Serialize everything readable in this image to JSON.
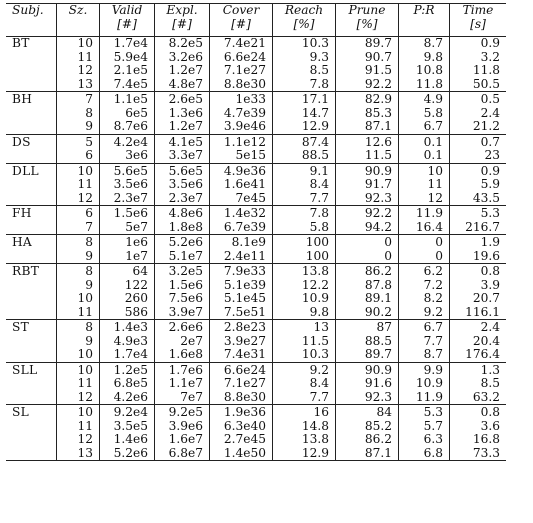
{
  "headers": [
    {
      "title": "Subj.",
      "unit": ""
    },
    {
      "title": "Sz.",
      "unit": ""
    },
    {
      "title": "Valid",
      "unit": "[#]"
    },
    {
      "title": "Expl.",
      "unit": "[#]"
    },
    {
      "title": "Cover",
      "unit": "[#]"
    },
    {
      "title": "Reach",
      "unit": "[%]"
    },
    {
      "title": "Prune",
      "unit": "[%]"
    },
    {
      "title": "P:R",
      "unit": ""
    },
    {
      "title": "Time",
      "unit": "[s]"
    }
  ],
  "groups": [
    {
      "subject": "BT",
      "rows": [
        [
          "10",
          "1.7e4",
          "8.2e5",
          "7.4e21",
          "10.3",
          "89.7",
          "8.7",
          "0.9"
        ],
        [
          "11",
          "5.9e4",
          "3.2e6",
          "6.6e24",
          "9.3",
          "90.7",
          "9.8",
          "3.2"
        ],
        [
          "12",
          "2.1e5",
          "1.2e7",
          "7.1e27",
          "8.5",
          "91.5",
          "10.8",
          "11.8"
        ],
        [
          "13",
          "7.4e5",
          "4.8e7",
          "8.8e30",
          "7.8",
          "92.2",
          "11.8",
          "50.5"
        ]
      ]
    },
    {
      "subject": "BH",
      "rows": [
        [
          "7",
          "1.1e5",
          "2.6e5",
          "1e33",
          "17.1",
          "82.9",
          "4.9",
          "0.5"
        ],
        [
          "8",
          "6e5",
          "1.3e6",
          "4.7e39",
          "14.7",
          "85.3",
          "5.8",
          "2.4"
        ],
        [
          "9",
          "8.7e6",
          "1.2e7",
          "3.9e46",
          "12.9",
          "87.1",
          "6.7",
          "21.2"
        ]
      ]
    },
    {
      "subject": "DS",
      "rows": [
        [
          "5",
          "4.2e4",
          "4.1e5",
          "1.1e12",
          "87.4",
          "12.6",
          "0.1",
          "0.7"
        ],
        [
          "6",
          "3e6",
          "3.3e7",
          "5e15",
          "88.5",
          "11.5",
          "0.1",
          "23"
        ]
      ]
    },
    {
      "subject": "DLL",
      "rows": [
        [
          "10",
          "5.6e5",
          "5.6e5",
          "4.9e36",
          "9.1",
          "90.9",
          "10",
          "0.9"
        ],
        [
          "11",
          "3.5e6",
          "3.5e6",
          "1.6e41",
          "8.4",
          "91.7",
          "11",
          "5.9"
        ],
        [
          "12",
          "2.3e7",
          "2.3e7",
          "7e45",
          "7.7",
          "92.3",
          "12",
          "43.5"
        ]
      ]
    },
    {
      "subject": "FH",
      "rows": [
        [
          "6",
          "1.5e6",
          "4.8e6",
          "1.4e32",
          "7.8",
          "92.2",
          "11.9",
          "5.3"
        ],
        [
          "7",
          "5e7",
          "1.8e8",
          "6.7e39",
          "5.8",
          "94.2",
          "16.4",
          "216.7"
        ]
      ]
    },
    {
      "subject": "HA",
      "rows": [
        [
          "8",
          "1e6",
          "5.2e6",
          "8.1e9",
          "100",
          "0",
          "0",
          "1.9"
        ],
        [
          "9",
          "1e7",
          "5.1e7",
          "2.4e11",
          "100",
          "0",
          "0",
          "19.6"
        ]
      ]
    },
    {
      "subject": "RBT",
      "rows": [
        [
          "8",
          "64",
          "3.2e5",
          "7.9e33",
          "13.8",
          "86.2",
          "6.2",
          "0.8"
        ],
        [
          "9",
          "122",
          "1.5e6",
          "5.1e39",
          "12.2",
          "87.8",
          "7.2",
          "3.9"
        ],
        [
          "10",
          "260",
          "7.5e6",
          "5.1e45",
          "10.9",
          "89.1",
          "8.2",
          "20.7"
        ],
        [
          "11",
          "586",
          "3.9e7",
          "7.5e51",
          "9.8",
          "90.2",
          "9.2",
          "116.1"
        ]
      ]
    },
    {
      "subject": "ST",
      "rows": [
        [
          "8",
          "1.4e3",
          "2.6e6",
          "2.8e23",
          "13",
          "87",
          "6.7",
          "2.4"
        ],
        [
          "9",
          "4.9e3",
          "2e7",
          "3.9e27",
          "11.5",
          "88.5",
          "7.7",
          "20.4"
        ],
        [
          "10",
          "1.7e4",
          "1.6e8",
          "7.4e31",
          "10.3",
          "89.7",
          "8.7",
          "176.4"
        ]
      ]
    },
    {
      "subject": "SLL",
      "rows": [
        [
          "10",
          "1.2e5",
          "1.7e6",
          "6.6e24",
          "9.2",
          "90.9",
          "9.9",
          "1.3"
        ],
        [
          "11",
          "6.8e5",
          "1.1e7",
          "7.1e27",
          "8.4",
          "91.6",
          "10.9",
          "8.5"
        ],
        [
          "12",
          "4.2e6",
          "7e7",
          "8.8e30",
          "7.7",
          "92.3",
          "11.9",
          "63.2"
        ]
      ]
    },
    {
      "subject": "SL",
      "rows": [
        [
          "10",
          "9.2e4",
          "9.2e5",
          "1.9e36",
          "16",
          "84",
          "5.3",
          "0.8"
        ],
        [
          "11",
          "3.5e5",
          "3.9e6",
          "6.3e40",
          "14.8",
          "85.2",
          "5.7",
          "3.6"
        ],
        [
          "12",
          "1.4e6",
          "1.6e7",
          "2.7e45",
          "13.8",
          "86.2",
          "6.3",
          "16.8"
        ],
        [
          "13",
          "5.2e6",
          "6.8e7",
          "1.4e50",
          "12.9",
          "87.1",
          "6.8",
          "73.3"
        ]
      ]
    }
  ]
}
